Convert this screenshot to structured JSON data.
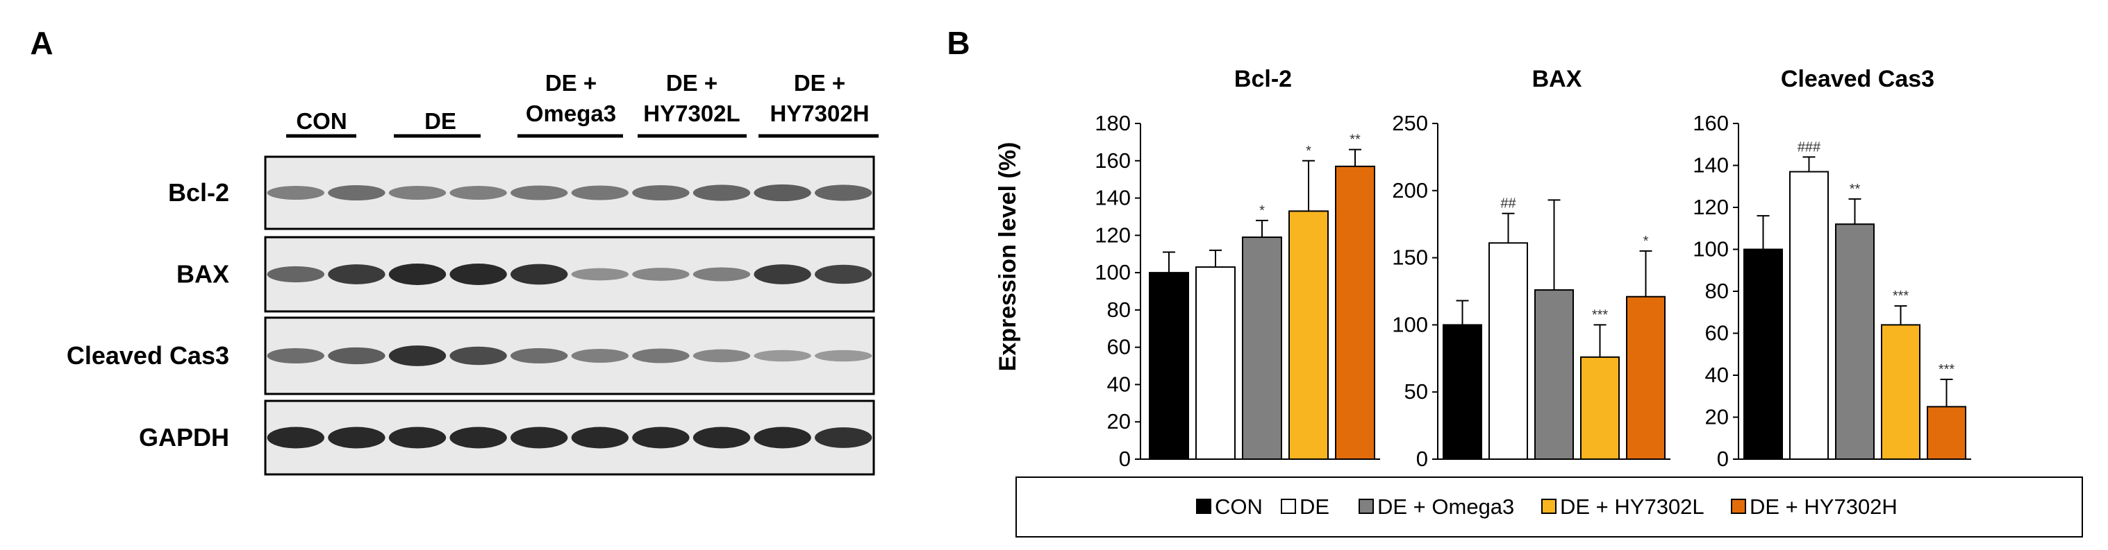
{
  "panel_a": {
    "letter": "A",
    "groups": [
      "CON",
      "DE",
      "DE +\nOmega3",
      "DE +\nHY7302L",
      "DE +\nHY7302H"
    ],
    "blots": [
      "Bcl-2",
      "BAX",
      "Cleaved Cas3",
      "GAPDH"
    ]
  },
  "panel_b": {
    "letter": "B",
    "ylabel": "Expression level (%)",
    "legend": [
      "CON",
      "DE",
      "DE + Omega3",
      "DE + HY7302L",
      "DE + HY7302H"
    ]
  },
  "colors": {
    "CON": "#000000",
    "DE": "#ffffff",
    "DE + Omega3": "#808080",
    "DE + HY7302L": "#f9b520",
    "DE + HY7302H": "#e36c0a"
  },
  "chart_data": [
    {
      "type": "bar",
      "title": "Bcl-2",
      "ylabel": "Expression level (%)",
      "categories": [
        "CON",
        "DE",
        "DE + Omega3",
        "DE + HY7302L",
        "DE + HY7302H"
      ],
      "values": [
        100,
        103,
        119,
        133,
        157
      ],
      "errors": [
        11,
        9,
        9,
        27,
        9
      ],
      "significance": [
        "",
        "",
        "*",
        "*",
        "**"
      ],
      "ylim": [
        0,
        180
      ],
      "yticks": [
        0,
        20,
        40,
        60,
        80,
        100,
        120,
        140,
        160,
        180
      ]
    },
    {
      "type": "bar",
      "title": "BAX",
      "categories": [
        "CON",
        "DE",
        "DE + Omega3",
        "DE + HY7302L",
        "DE + HY7302H"
      ],
      "values": [
        100,
        161,
        126,
        76,
        121
      ],
      "errors": [
        18,
        22,
        67,
        24,
        34
      ],
      "significance": [
        "",
        "##",
        "",
        "***",
        "*"
      ],
      "ylim": [
        0,
        250
      ],
      "yticks": [
        0,
        50,
        100,
        150,
        200,
        250
      ]
    },
    {
      "type": "bar",
      "title": "Cleaved Cas3",
      "categories": [
        "CON",
        "DE",
        "DE + Omega3",
        "DE + HY7302L",
        "DE + HY7302H"
      ],
      "values": [
        100,
        137,
        112,
        64,
        25
      ],
      "errors": [
        16,
        7,
        12,
        9,
        13
      ],
      "significance": [
        "",
        "###",
        "**",
        "***",
        "***"
      ],
      "ylim": [
        0,
        160
      ],
      "yticks": [
        0,
        20,
        40,
        60,
        80,
        100,
        120,
        140,
        160
      ]
    }
  ]
}
